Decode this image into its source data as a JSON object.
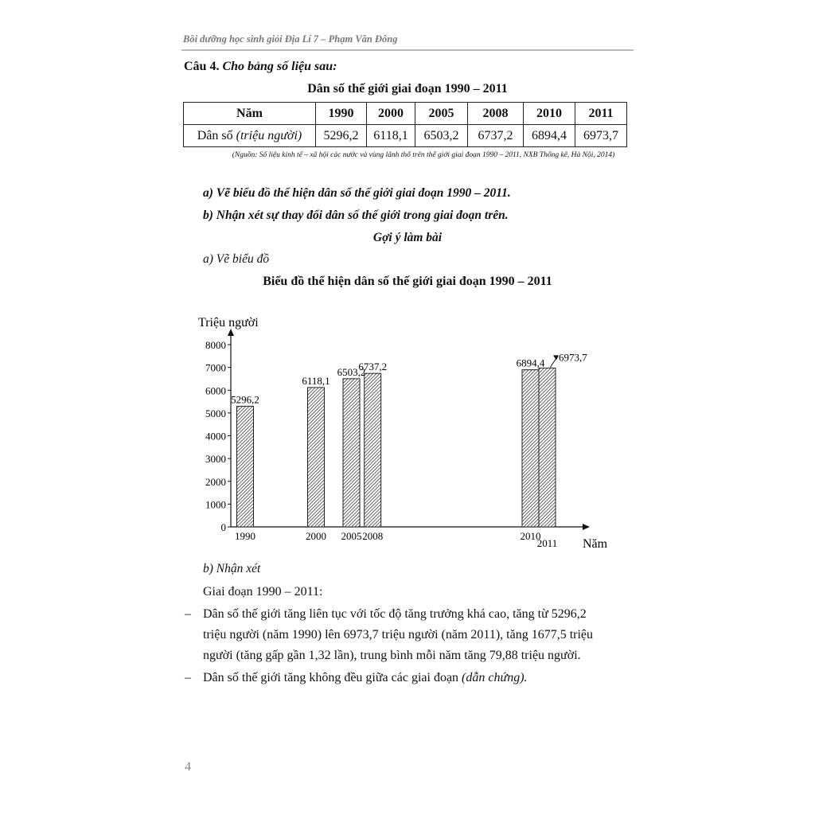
{
  "header": {
    "running_title": "Bồi dưỡng học sinh giỏi Địa Lí 7 – Phạm Văn Đông"
  },
  "question": {
    "label": "Câu 4.",
    "prompt": "Cho bảng số liệu sau:"
  },
  "table": {
    "title": "Dân số thế giới giai đoạn 1990 – 2011",
    "header_label": "Năm",
    "row_label_main": "Dân số ",
    "row_label_unit": "(triệu người)",
    "years": [
      "1990",
      "2000",
      "2005",
      "2008",
      "2010",
      "2011"
    ],
    "values": [
      "5296,2",
      "6118,1",
      "6503,2",
      "6737,2",
      "6894,4",
      "6973,7"
    ],
    "source": "(Nguồn: Số liệu kinh tế – xã hội các nước và vùng lãnh thổ trên thế giới giai đoạn 1990 – 2011, NXB Thống kê, Hà Nội, 2014)"
  },
  "tasks": {
    "a": "a) Vẽ biểu đồ thể hiện dân số thế giới giai đoạn 1990 – 2011.",
    "b": "b) Nhận xét sự thay đổi dân số thế giới trong giai đoạn trên."
  },
  "answer": {
    "heading": "Gợi ý làm bài",
    "part_a": "a) Vẽ biểu đồ",
    "part_b": "b) Nhận xét",
    "period": "Giai đoạn 1990 – 2011:",
    "bullet_dash": "–",
    "bullet1_lines": [
      "Dân số thế giới tăng liên tục với tốc độ tăng trưởng khá cao, tăng từ 5296,2",
      "triệu người (năm 1990) lên 6973,7 triệu người (năm 2011), tăng 1677,5 triệu",
      "người (tăng gấp gần 1,32 lần), trung bình mỗi năm tăng 79,88 triệu người."
    ],
    "bullet2_main": "Dân số thế giới tăng không đều giữa các giai đoạn ",
    "bullet2_italic": "(dẫn chứng)."
  },
  "chart_data": {
    "type": "bar",
    "title": "Biểu đồ thể hiện dân số thế giới giai đoạn 1990 – 2011",
    "ylabel": "Triệu người",
    "xlabel": "Năm",
    "categories": [
      "1990",
      "2000",
      "2005",
      "2008",
      "2010",
      "2011"
    ],
    "values": [
      5296.2,
      6118.1,
      6503.2,
      6737.2,
      6894.4,
      6973.7
    ],
    "data_labels": [
      "5296,2",
      "6118,1",
      "6503,2",
      "6737,2",
      "6894,4",
      "6973,7"
    ],
    "yticks": [
      "0",
      "1000",
      "2000",
      "3000",
      "4000",
      "5000",
      "6000",
      "7000",
      "8000"
    ],
    "ylim": [
      0,
      8000
    ],
    "x_scale": "proportional to year",
    "fill": "diagonal hatch",
    "grid": false,
    "legend": "none"
  },
  "page_number": "4"
}
